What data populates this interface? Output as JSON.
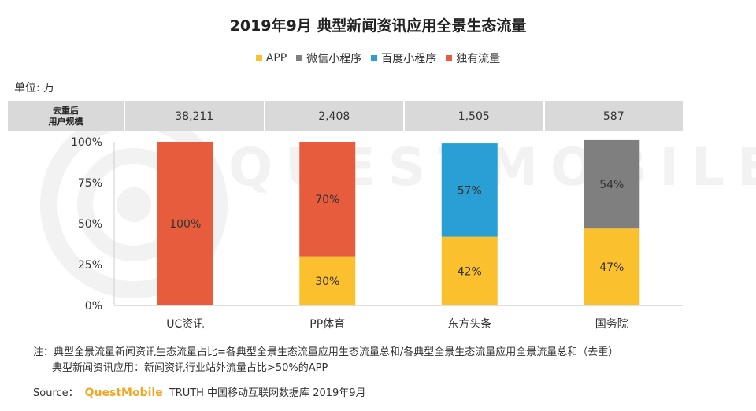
{
  "title": "2019年9月 典型新闻资讯应用全景生态流量",
  "unit_label": "单位: 万",
  "watermark": "QUESTMOBILE",
  "users_header": [
    "去重后",
    "用户规模"
  ],
  "users": [
    "38,211",
    "2,408",
    "1,505",
    "587"
  ],
  "legend": [
    {
      "label": "APP",
      "color": "#fbc02d"
    },
    {
      "label": "微信小程序",
      "color": "#7f7f7f"
    },
    {
      "label": "百度小程序",
      "color": "#2a9fd6"
    },
    {
      "label": "独有流量",
      "color": "#e75c3c"
    }
  ],
  "chart_data": {
    "type": "bar",
    "stacked": true,
    "categories": [
      "UC资讯",
      "PP体育",
      "东方头条",
      "国务院"
    ],
    "series": [
      {
        "name": "APP",
        "color": "#fbc02d",
        "values": [
          0,
          30,
          42,
          47
        ],
        "labels": [
          "",
          "30%",
          "42%",
          "47%"
        ]
      },
      {
        "name": "微信小程序",
        "color": "#7f7f7f",
        "values": [
          0,
          0,
          0,
          54
        ],
        "labels": [
          "",
          "",
          "",
          "54%"
        ]
      },
      {
        "name": "百度小程序",
        "color": "#2a9fd6",
        "values": [
          0,
          0,
          57,
          0
        ],
        "labels": [
          "",
          "",
          "57%",
          ""
        ]
      },
      {
        "name": "独有流量",
        "color": "#e75c3c",
        "values": [
          100,
          70,
          0,
          0
        ],
        "labels": [
          "100%",
          "70%",
          "",
          ""
        ]
      }
    ],
    "yticks": [
      "0%",
      "25%",
      "50%",
      "75%",
      "100%"
    ],
    "ylim": [
      0,
      100
    ],
    "grid": false
  },
  "note_line1": "注：典型全景流量新闻资讯生态流量占比=各典型全景生态流量应用生态流量总和/各典型全景生态流量应用全景流量总和（去重）",
  "note_line2": "典型新闻资讯应用：新闻资讯行业站外流量占比>50%的APP",
  "source_label": "Source：",
  "source_brand": "QuestMobile",
  "source_text": "TRUTH 中国移动互联网数据库 2019年9月"
}
